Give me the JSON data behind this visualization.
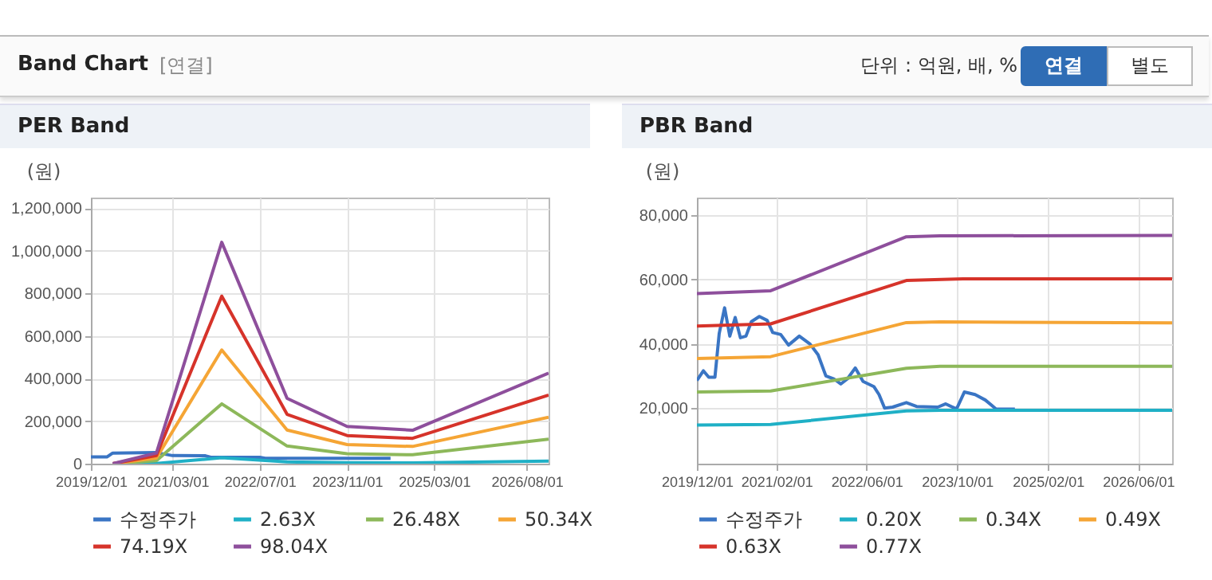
{
  "chart_data": [
    {
      "type": "other",
      "title": "Band Chart",
      "annotations": [
        "[연결]",
        "단위 : 억원, 배, %",
        "연결",
        "별도"
      ]
    },
    {
      "type": "line",
      "title": "PER Band",
      "ylabel": "(원)",
      "xlim": [
        "2019-12-01",
        "2026-12-01"
      ],
      "ylim": [
        0,
        1250000
      ],
      "xticks": [
        {
          "value": "2019-12-01",
          "label": "2019/12/01"
        },
        {
          "value": "2021-03-01",
          "label": "2021/03/01"
        },
        {
          "value": "2022-07-01",
          "label": "2022/07/01"
        },
        {
          "value": "2023-11-01",
          "label": "2023/11/01"
        },
        {
          "value": "2025-03-01",
          "label": "2025/03/01"
        },
        {
          "value": "2026-08-01",
          "label": "2026/08/01"
        }
      ],
      "yticks": [
        0,
        {
          "value": 200000,
          "label": "200,000"
        },
        {
          "value": 400000,
          "label": "400,000"
        },
        {
          "value": 600000,
          "label": "600,000"
        },
        {
          "value": 800000,
          "label": "800,000"
        },
        {
          "value": 1000000,
          "label": "1,000,000"
        },
        {
          "value": 1200000,
          "label": "1,200,000"
        }
      ],
      "grid": true,
      "legend": "bottom",
      "series": [
        {
          "name": "수정주가",
          "color": "#3a75c4",
          "x": [
            "2019-12-01",
            "2020-03-01",
            "2020-04-01",
            "2020-12-01",
            "2021-03-01",
            "2021-09-01",
            "2021-10-01",
            "2022-07-01",
            "2022-08-01",
            "2024-07-01"
          ],
          "values": [
            32000,
            32000,
            50000,
            52000,
            38000,
            37000,
            30000,
            30000,
            25000,
            25000
          ]
        },
        {
          "name": "2.63X",
          "color": "#1fb0c6",
          "x": [
            "2020-04-01",
            "2020-12-01",
            "2021-12-01",
            "2022-12-01",
            "2023-11-01",
            "2024-11-01",
            "2026-12-01"
          ],
          "values": [
            0,
            1000,
            28000,
            8000,
            5000,
            4000,
            12000
          ]
        },
        {
          "name": "26.48X",
          "color": "#8db85a",
          "x": [
            "2020-04-01",
            "2020-12-01",
            "2021-12-01",
            "2022-12-01",
            "2023-11-01",
            "2024-11-01",
            "2026-12-01"
          ],
          "values": [
            0,
            14000,
            281000,
            83000,
            47000,
            42000,
            115000
          ]
        },
        {
          "name": "50.34X",
          "color": "#f5a535",
          "x": [
            "2020-04-01",
            "2020-12-01",
            "2021-12-01",
            "2022-12-01",
            "2023-11-01",
            "2024-11-01",
            "2026-12-01"
          ],
          "values": [
            0,
            26000,
            534000,
            158000,
            90000,
            81000,
            218000
          ]
        },
        {
          "name": "74.19X",
          "color": "#d6332a",
          "x": [
            "2020-04-01",
            "2020-12-01",
            "2021-12-01",
            "2022-12-01",
            "2023-11-01",
            "2024-11-01",
            "2026-12-01"
          ],
          "values": [
            0,
            38000,
            787000,
            232000,
            132000,
            119000,
            322000
          ]
        },
        {
          "name": "98.04X",
          "color": "#8e4f9c",
          "x": [
            "2020-04-01",
            "2020-12-01",
            "2021-12-01",
            "2022-12-01",
            "2023-11-01",
            "2024-11-01",
            "2026-12-01"
          ],
          "values": [
            0,
            50000,
            1040000,
            307000,
            175000,
            157000,
            425000
          ]
        }
      ]
    },
    {
      "type": "line",
      "title": "PBR Band",
      "ylabel": "(원)",
      "xlim": [
        "2019-12-01",
        "2026-12-01"
      ],
      "ylim": [
        2700,
        85500
      ],
      "xticks": [
        {
          "value": "2019-12-01",
          "label": "2019/12/01"
        },
        {
          "value": "2021-02-01",
          "label": "2021/02/01"
        },
        {
          "value": "2022-06-01",
          "label": "2022/06/01"
        },
        {
          "value": "2023-10-01",
          "label": "2023/10/01"
        },
        {
          "value": "2025-02-01",
          "label": "2025/02/01"
        },
        {
          "value": "2026-06-01",
          "label": "2026/06/01"
        }
      ],
      "yticks": [
        {
          "value": 20000,
          "label": "20,000"
        },
        {
          "value": 40000,
          "label": "40,000"
        },
        {
          "value": 60000,
          "label": "60,000"
        },
        {
          "value": 80000,
          "label": "80,000"
        }
      ],
      "grid": true,
      "legend": "bottom",
      "series": [
        {
          "name": "수정주가",
          "color": "#3a75c4",
          "x": [
            "2019-12-01",
            "2020-01-05",
            "2020-02-03",
            "2020-03-07",
            "2020-03-30",
            "2020-04-28",
            "2020-05-26",
            "2020-06-24",
            "2020-07-22",
            "2020-08-21",
            "2020-09-19",
            "2020-11-01",
            "2020-12-13",
            "2021-01-12",
            "2021-02-24",
            "2021-04-07",
            "2021-06-04",
            "2021-08-01",
            "2021-09-13",
            "2021-10-25",
            "2021-12-07",
            "2022-01-13",
            "2022-02-18",
            "2022-04-01",
            "2022-05-13",
            "2022-07-10",
            "2022-08-07",
            "2022-09-06",
            "2022-10-19",
            "2023-01-01",
            "2023-02-25",
            "2023-06-19",
            "2023-08-01",
            "2023-09-28",
            "2023-11-09",
            "2024-01-06",
            "2024-03-01",
            "2024-04-28",
            "2024-08-07"
          ],
          "values": [
            28600,
            31600,
            29600,
            29600,
            43200,
            51200,
            42400,
            48200,
            41900,
            42400,
            46900,
            48500,
            47300,
            43500,
            42900,
            39600,
            42400,
            39900,
            36600,
            30000,
            29100,
            27500,
            29100,
            32500,
            28300,
            26700,
            24200,
            20000,
            20300,
            21700,
            20500,
            20300,
            21300,
            19700,
            25000,
            24200,
            22500,
            19700,
            19700
          ]
        },
        {
          "name": "0.20X",
          "color": "#1fb0c6",
          "x": [
            "2019-12-01",
            "2021-01-01",
            "2023-01-01",
            "2023-07-01",
            "2026-12-01"
          ],
          "values": [
            14700,
            14900,
            19100,
            19300,
            19300
          ]
        },
        {
          "name": "0.34X",
          "color": "#8db85a",
          "x": [
            "2019-12-01",
            "2021-01-01",
            "2023-01-01",
            "2023-07-01",
            "2026-12-01"
          ],
          "values": [
            25000,
            25300,
            32400,
            33000,
            33000
          ]
        },
        {
          "name": "0.49X",
          "color": "#f5a535",
          "x": [
            "2019-12-01",
            "2021-01-01",
            "2023-01-01",
            "2023-07-01",
            "2026-12-01"
          ],
          "values": [
            35400,
            36000,
            46600,
            46800,
            46500
          ]
        },
        {
          "name": "0.63X",
          "color": "#d6332a",
          "x": [
            "2019-12-01",
            "2021-01-01",
            "2023-01-01",
            "2023-11-01",
            "2026-12-01"
          ],
          "values": [
            45500,
            46200,
            59700,
            60200,
            60200
          ]
        },
        {
          "name": "0.77X",
          "color": "#8e4f9c",
          "x": [
            "2019-12-01",
            "2021-01-01",
            "2023-01-01",
            "2023-07-01",
            "2026-12-01"
          ],
          "values": [
            55600,
            56500,
            73300,
            73600,
            73700
          ]
        }
      ]
    }
  ]
}
